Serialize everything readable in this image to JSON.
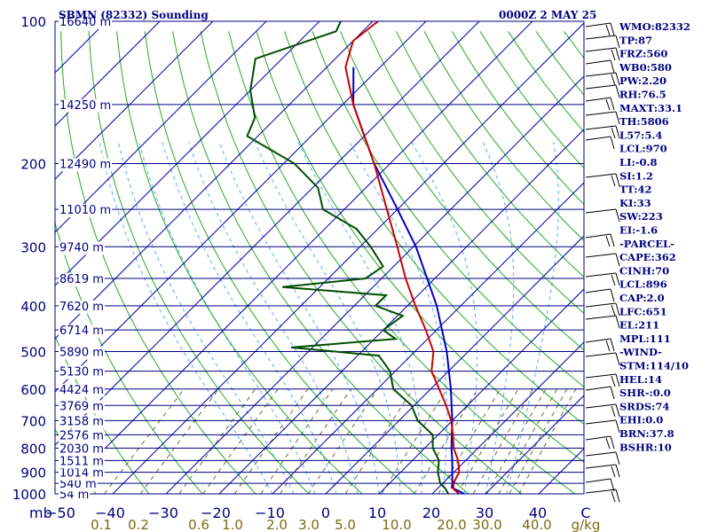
{
  "header": {
    "station": "SBMN (82332) Sounding",
    "time": "0000Z  2 MAY 25"
  },
  "colors": {
    "frame": "#000080",
    "isotherm": "#0000aa",
    "dry_adiabat": "#22aa22",
    "moist_adiabat": "#55aaff",
    "mixing_ratio": "#6b6b30",
    "temperature": "#cc0000",
    "dewpoint": "#004d00",
    "parcel": "#0000cc"
  },
  "chart_data": {
    "type": "skew-t",
    "x_axis": {
      "label": "C",
      "range": [
        -50,
        50
      ],
      "tick_labels": [
        "−50",
        "−40",
        "−30",
        "−20",
        "−10",
        "0",
        "10",
        "20",
        "30",
        "40"
      ]
    },
    "y_axis": {
      "label": "mb",
      "scale": "log",
      "range": [
        1000,
        100
      ],
      "tick_labels": [
        "100",
        "200",
        "300",
        "400",
        "500",
        "600",
        "700",
        "800",
        "900",
        "1000"
      ]
    },
    "mixing_ratio_axis": {
      "unit": "g/kg",
      "tick_labels": [
        "0.1",
        "0.2",
        "0.6",
        "1.0",
        "2.0",
        "3.0",
        "5.0",
        "10.0",
        "20.0",
        "30.0",
        "40.0"
      ]
    },
    "levels": [
      {
        "p": 1000,
        "height": "54 m"
      },
      {
        "p": 950,
        "height": "540 m"
      },
      {
        "p": 900,
        "height": "1014 m"
      },
      {
        "p": 850,
        "height": "1511 m"
      },
      {
        "p": 800,
        "height": "2030 m"
      },
      {
        "p": 750,
        "height": "2576 m"
      },
      {
        "p": 700,
        "height": "3158 m"
      },
      {
        "p": 650,
        "height": "3769 m"
      },
      {
        "p": 600,
        "height": "4424 m"
      },
      {
        "p": 550,
        "height": "5130 m"
      },
      {
        "p": 500,
        "height": "5890 m"
      },
      {
        "p": 450,
        "height": "6714 m"
      },
      {
        "p": 400,
        "height": "7620 m"
      },
      {
        "p": 350,
        "height": "8619 m"
      },
      {
        "p": 300,
        "height": "9740 m"
      },
      {
        "p": 250,
        "height": "11010 m"
      },
      {
        "p": 200,
        "height": "12490 m"
      },
      {
        "p": 150,
        "height": "14250 m"
      },
      {
        "p": 100,
        "height": "16640 m"
      }
    ],
    "temperature": [
      {
        "p": 1000,
        "t": 25.0
      },
      {
        "p": 975,
        "t": 23.0
      },
      {
        "p": 950,
        "t": 22.0
      },
      {
        "p": 925,
        "t": 21.5
      },
      {
        "p": 900,
        "t": 21.0
      },
      {
        "p": 850,
        "t": 18.6
      },
      {
        "p": 800,
        "t": 15.4
      },
      {
        "p": 750,
        "t": 12.8
      },
      {
        "p": 700,
        "t": 9.8
      },
      {
        "p": 650,
        "t": 6.0
      },
      {
        "p": 600,
        "t": 1.6
      },
      {
        "p": 550,
        "t": -3.2
      },
      {
        "p": 500,
        "t": -6.5
      },
      {
        "p": 450,
        "t": -12.0
      },
      {
        "p": 400,
        "t": -18.5
      },
      {
        "p": 350,
        "t": -25.5
      },
      {
        "p": 300,
        "t": -33.0
      },
      {
        "p": 250,
        "t": -42.0
      },
      {
        "p": 200,
        "t": -53.0
      },
      {
        "p": 175,
        "t": -60.0
      },
      {
        "p": 150,
        "t": -68.0
      },
      {
        "p": 125,
        "t": -76.5
      },
      {
        "p": 110,
        "t": -80.0
      },
      {
        "p": 100,
        "t": -79.0
      }
    ],
    "dewpoint": [
      {
        "p": 1000,
        "td": 23.0
      },
      {
        "p": 975,
        "td": 21.5
      },
      {
        "p": 950,
        "td": 19.5
      },
      {
        "p": 900,
        "td": 17.0
      },
      {
        "p": 850,
        "td": 15.0
      },
      {
        "p": 800,
        "td": 11.5
      },
      {
        "p": 750,
        "td": 9.0
      },
      {
        "p": 700,
        "td": 3.5
      },
      {
        "p": 650,
        "td": -0.5
      },
      {
        "p": 600,
        "td": -7.0
      },
      {
        "p": 550,
        "td": -11.0
      },
      {
        "p": 510,
        "td": -16.0
      },
      {
        "p": 490,
        "td": -34.0
      },
      {
        "p": 470,
        "td": -16.0
      },
      {
        "p": 450,
        "td": -20.0
      },
      {
        "p": 420,
        "td": -19.0
      },
      {
        "p": 400,
        "td": -26.0
      },
      {
        "p": 380,
        "td": -26.0
      },
      {
        "p": 365,
        "td": -47.0
      },
      {
        "p": 350,
        "td": -33.0
      },
      {
        "p": 330,
        "td": -32.0
      },
      {
        "p": 300,
        "td": -38.0
      },
      {
        "p": 275,
        "td": -44.0
      },
      {
        "p": 250,
        "td": -54.0
      },
      {
        "p": 225,
        "td": -59.0
      },
      {
        "p": 200,
        "td": -68.0
      },
      {
        "p": 175,
        "td": -82.0
      },
      {
        "p": 160,
        "td": -84.0
      },
      {
        "p": 140,
        "td": -90.0
      },
      {
        "p": 120,
        "td": -95.0
      },
      {
        "p": 105,
        "td": -85.0
      },
      {
        "p": 100,
        "td": -86.0
      }
    ],
    "parcel": [
      {
        "p": 1000,
        "t": 26.0
      },
      {
        "p": 970,
        "t": 22.5
      },
      {
        "p": 950,
        "t": 21.8
      },
      {
        "p": 900,
        "t": 19.7
      },
      {
        "p": 850,
        "t": 17.5
      },
      {
        "p": 800,
        "t": 15.0
      },
      {
        "p": 700,
        "t": 10.0
      },
      {
        "p": 600,
        "t": 3.8
      },
      {
        "p": 500,
        "t": -4.0
      },
      {
        "p": 400,
        "t": -14.5
      },
      {
        "p": 300,
        "t": -29.5
      },
      {
        "p": 250,
        "t": -40.0
      },
      {
        "p": 200,
        "t": -53.0
      },
      {
        "p": 150,
        "t": -68.0
      },
      {
        "p": 125,
        "t": -75.0
      }
    ],
    "wind_barbs_note": "wind barbs drawn along right edge"
  },
  "indices": [
    "WMO:82332",
    "TP:87",
    "FRZ:560",
    "WB0:580",
    "PW:2.20",
    "RH:76.5",
    "MAXT:33.1",
    "TH:5806",
    "L57:5.4",
    "LCL:970",
    "LI:-0.8",
    "SI:1.2",
    "TT:42",
    "KI:33",
    "SW:223",
    "EI:-1.6",
    "-PARCEL-",
    "CAPE:362",
    "CINH:70",
    "LCL:896",
    "CAP:2.0",
    "LFC:651",
    "EL:211",
    "MPL:111",
    "-WIND-",
    "STM:114/10",
    "HEL:14",
    "SHR-:0.0",
    "SRDS:74",
    "EHI:0.0",
    "BRN:37.8",
    "BSHR:10"
  ]
}
